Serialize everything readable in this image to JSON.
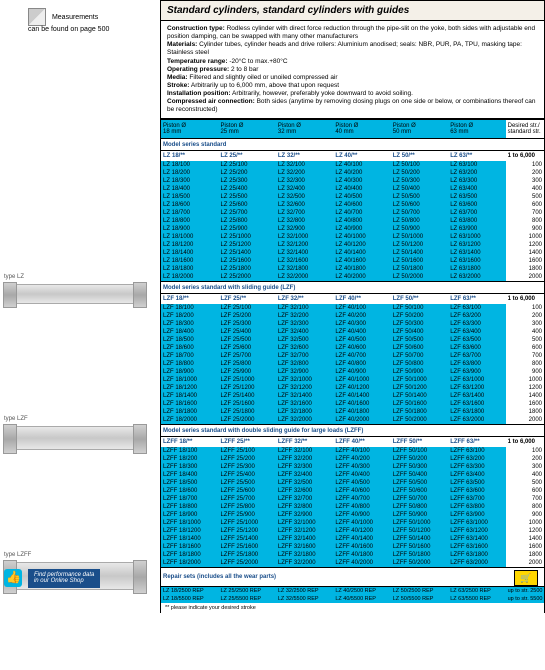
{
  "meta": {
    "measurements_line1": "Measurements",
    "measurements_line2": "can be found on page 500"
  },
  "title": "Standard cylinders, standard cylinders with guides",
  "desc": {
    "construction_label": "Construction type:",
    "construction": "Rodless cylinder with direct force reduction through the pipe-slit on the yoke, both sides with adjustable end position damping, can be swapped with many other manufacturers",
    "materials_label": "Materials:",
    "materials": "Cylinder tubes, cylinder heads and drive rollers: Aluminium anodised; seals: NBR, PUR, PA, TPU, masking tape: Stainless steel",
    "temp_label": "Temperature range:",
    "temp": "-20°C to max.+80°C",
    "press_label": "Operating pressure:",
    "press": "2 to 8 bar",
    "media_label": "Media:",
    "media": "Filtered and slightly oiled or unoiled compressed air",
    "stroke_label": "Stroke:",
    "stroke": "Arbitrarily up to 6,000 mm, above that upon request",
    "install_label": "Installation position:",
    "install": "Arbitrarily, however, preferably yoke downward to avoid soiling.",
    "air_label": "Compressed air connection:",
    "air": "Both sides (anytime by removing closing plugs on one side or below, or combinations thereof can be reconstructed)"
  },
  "piston_headers": [
    {
      "top": "Piston Ø",
      "bot": "18 mm"
    },
    {
      "top": "Piston Ø",
      "bot": "25 mm"
    },
    {
      "top": "Piston Ø",
      "bot": "32 mm"
    },
    {
      "top": "Piston Ø",
      "bot": "40 mm"
    },
    {
      "top": "Piston Ø",
      "bot": "50 mm"
    },
    {
      "top": "Piston Ø",
      "bot": "63 mm"
    }
  ],
  "desired_header": {
    "top": "Desired str./",
    "bot": "standard str."
  },
  "range_text": "1 to 6,000",
  "strokes": [
    "100",
    "200",
    "300",
    "400",
    "500",
    "600",
    "700",
    "800",
    "900",
    "1000",
    "1200",
    "1400",
    "1600",
    "1800",
    "2000"
  ],
  "series": {
    "lz": {
      "title": "Model series standard",
      "prefix": "LZ",
      "heads": [
        "LZ 18/**",
        "LZ 25/**",
        "LZ 32/**",
        "LZ 40/**",
        "LZ 50/**",
        "LZ 63/**"
      ]
    },
    "lzf": {
      "title": "Model series standard with sliding guide (LZF)",
      "prefix": "LZF",
      "heads": [
        "LZF 18/**",
        "LZF 25/**",
        "LZF 32/**",
        "LZF 40/**",
        "LZF 50/**",
        "LZF 63/**"
      ]
    },
    "lzff": {
      "title": "Model series standard with double sliding guide for large loads (LZFF)",
      "prefix": "LZFF",
      "heads": [
        "LZFF 18/**",
        "LZFF 25/**",
        "LZFF 32/**",
        "LZFF 40/**",
        "LZFF 50/**",
        "LZFF 63/**"
      ]
    }
  },
  "dia": [
    "18",
    "25",
    "32",
    "40",
    "50",
    "63"
  ],
  "repair": {
    "title": "Repair sets (includes all the wear parts)",
    "rows": [
      [
        "LZ 18/2500 REP",
        "LZ 25/2500 REP",
        "LZ 32/2500 REP",
        "LZ 40/2500 REP",
        "LZ 50/2500 REP",
        "LZ 63/2500 REP",
        "up to str. 2500"
      ],
      [
        "LZ 18/5500 REP",
        "LZ 25/5500 REP",
        "LZ 32/5500 REP",
        "LZ 40/5500 REP",
        "LZ 50/5500 REP",
        "LZ 63/5500 REP",
        "up to str. 5500"
      ]
    ]
  },
  "footnote": "** please indicate your desired stroke",
  "labels": {
    "lz": "type LZ",
    "lzf": "type LZF",
    "lzff": "type LZFF"
  },
  "tip": {
    "line1": "Find performance data",
    "line2": "in our Online Shop"
  }
}
